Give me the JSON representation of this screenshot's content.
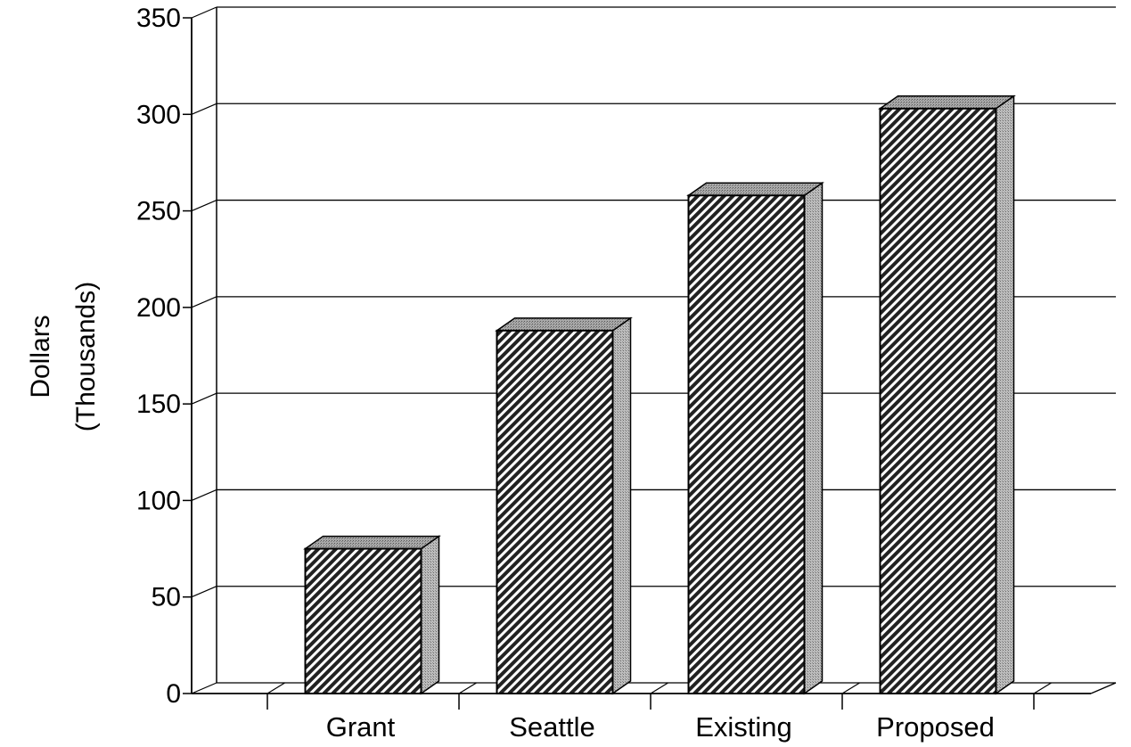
{
  "chart_data": {
    "type": "bar",
    "categories": [
      "Grant",
      "Seattle",
      "Existing",
      "Proposed"
    ],
    "values": [
      75,
      188,
      258,
      303
    ],
    "ylabel_lines": [
      "Dollars",
      "(Thousands)"
    ],
    "ylim": [
      0,
      350
    ],
    "yticks": [
      "0",
      "50",
      "100",
      "150",
      "200",
      "250",
      "300",
      "350"
    ],
    "grid": true,
    "style": "3d-hatched"
  }
}
